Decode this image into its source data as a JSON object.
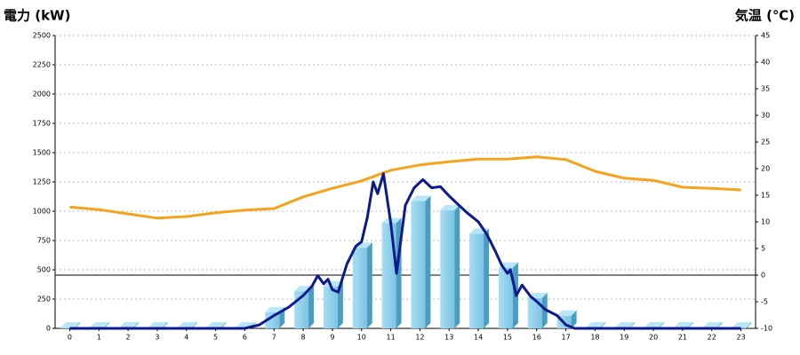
{
  "chart_data": {
    "type": "bar",
    "title": "電力 (kW)",
    "title_color": "#1a73b8",
    "y2_title": "気温 (℃)",
    "y2_title_color": "#f08a24",
    "categories": [
      0,
      1,
      2,
      3,
      4,
      5,
      6,
      7,
      8,
      9,
      10,
      11,
      12,
      13,
      14,
      15,
      16,
      17,
      18,
      19,
      20,
      21,
      22,
      23
    ],
    "ylim": [
      0,
      2500
    ],
    "yticks": [
      0,
      250,
      500,
      750,
      1000,
      1250,
      1500,
      1750,
      2000,
      2250,
      2500
    ],
    "y2lim": [
      -10,
      45
    ],
    "y2ticks": [
      -10,
      -5,
      0,
      5,
      10,
      15,
      20,
      25,
      30,
      35,
      40,
      45
    ],
    "grid": true,
    "series": [
      {
        "type": "bar",
        "color": "#87ceeb",
        "values": [
          0,
          0,
          0,
          0,
          0,
          0,
          0,
          130,
          310,
          350,
          680,
          890,
          1080,
          1000,
          800,
          510,
          250,
          100,
          0,
          0,
          0,
          0,
          0,
          0
        ]
      },
      {
        "type": "line",
        "color": "#0c1a8e",
        "x": [
          0,
          6,
          6.5,
          7,
          7.5,
          8,
          8.3,
          8.5,
          8.7,
          8.85,
          9,
          9.2,
          9.5,
          9.8,
          10,
          10.2,
          10.4,
          10.55,
          10.75,
          11,
          11.2,
          11.5,
          11.8,
          12.1,
          12.4,
          12.7,
          13,
          13.3,
          13.6,
          14,
          14.3,
          14.6,
          14.8,
          15,
          15.1,
          15.3,
          15.5,
          15.8,
          16,
          16.3,
          16.7,
          17,
          17.3,
          23
        ],
        "values": [
          0,
          0,
          30,
          110,
          180,
          280,
          360,
          450,
          380,
          420,
          330,
          310,
          550,
          700,
          740,
          950,
          1250,
          1150,
          1320,
          900,
          470,
          1050,
          1200,
          1270,
          1200,
          1210,
          1130,
          1060,
          990,
          910,
          800,
          650,
          540,
          470,
          500,
          280,
          370,
          270,
          230,
          160,
          110,
          30,
          0,
          0
        ]
      },
      {
        "type": "line",
        "axis": "y2",
        "color": "#f5a31a",
        "values": [
          12.8,
          12.3,
          11.5,
          10.7,
          11,
          11.7,
          12.2,
          12.5,
          14.7,
          16.3,
          17.7,
          19.7,
          20.7,
          21.3,
          21.8,
          21.8,
          22.2,
          21.7,
          19.5,
          18.2,
          17.8,
          16.5,
          16.3,
          16
        ]
      }
    ]
  }
}
